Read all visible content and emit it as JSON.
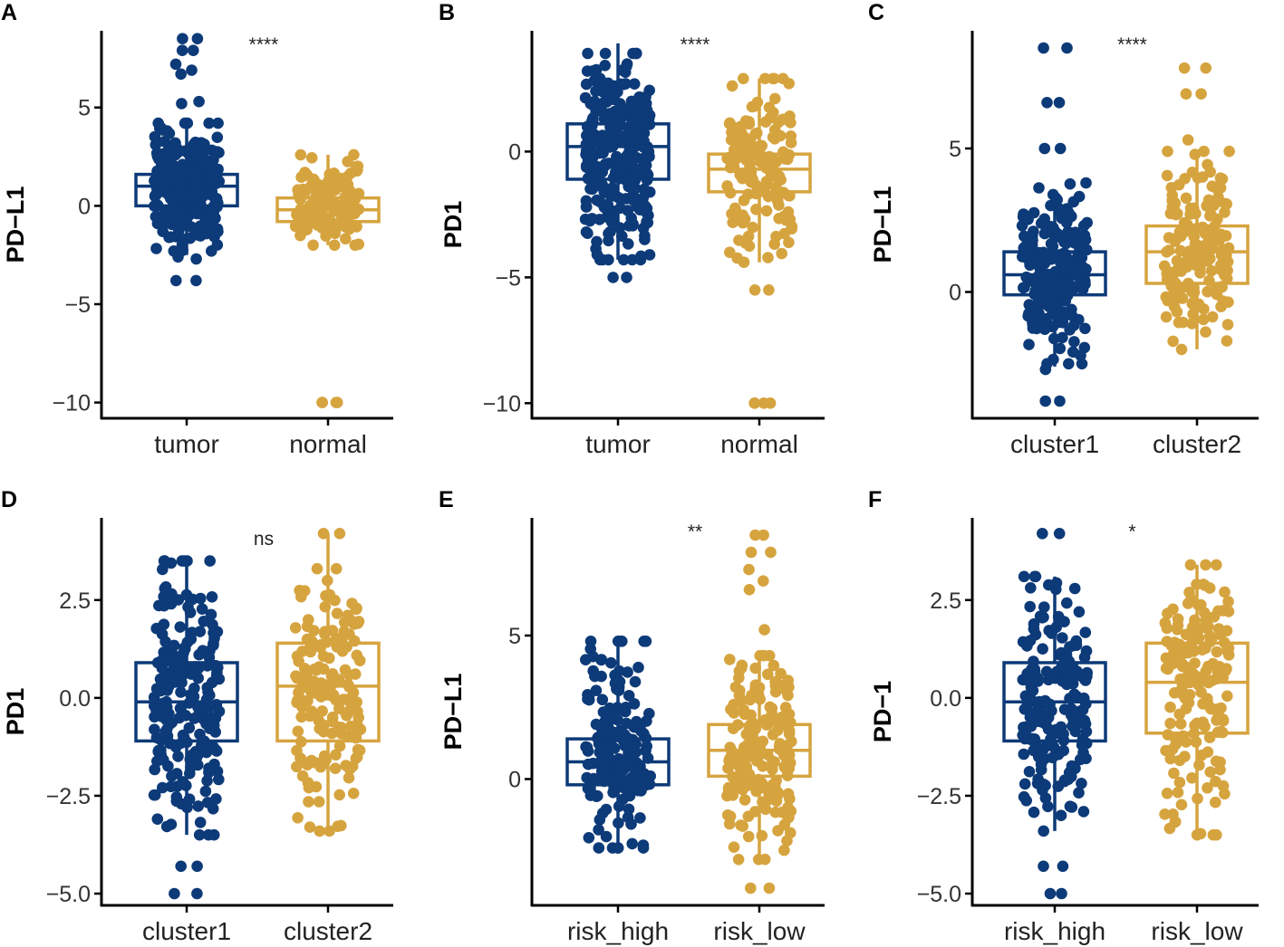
{
  "colors": {
    "group1": "#0d3a78",
    "group2": "#d6a43f",
    "axis": "#000000"
  },
  "chart_data": [
    {
      "type": "box",
      "panel": "A",
      "ylabel": "PD−L1",
      "ticks": [
        5,
        0,
        -5,
        -10
      ],
      "tick_labels": [
        "5",
        "0",
        "−5",
        "−10"
      ],
      "ylim": [
        -10.8,
        8.9
      ],
      "significance": "****",
      "groups": [
        {
          "name": "tumor",
          "color": "group1",
          "box": {
            "q1": 0.0,
            "median": 1.0,
            "q3": 1.6,
            "whisker_low": -2.5,
            "whisker_high": 4.3
          },
          "outliers": [
            8.5,
            8.5,
            7.9,
            7.9,
            7.2,
            6.9,
            6.7,
            5.3,
            5.2,
            -3.8,
            -3.8,
            -2.7,
            -2.6
          ],
          "cloud": [
            -2.3,
            4.2
          ],
          "n": 280
        },
        {
          "name": "normal",
          "color": "group2",
          "box": {
            "q1": -0.8,
            "median": -0.2,
            "q3": 0.4,
            "whisker_low": -2.0,
            "whisker_high": 2.6
          },
          "outliers": [
            -10,
            -10,
            -10,
            -10
          ],
          "cloud": [
            -2.0,
            2.6
          ],
          "n": 120
        }
      ]
    },
    {
      "type": "box",
      "panel": "B",
      "ylabel": "PD1",
      "ticks": [
        0,
        -5,
        -10
      ],
      "tick_labels": [
        "0",
        "−5",
        "−10"
      ],
      "ylim": [
        -10.6,
        4.8
      ],
      "significance": "****",
      "groups": [
        {
          "name": "tumor",
          "color": "group1",
          "box": {
            "q1": -1.1,
            "median": 0.2,
            "q3": 1.1,
            "whisker_low": -4.3,
            "whisker_high": 4.3
          },
          "outliers": [
            -5.0,
            -5.0
          ],
          "cloud": [
            -4.3,
            3.9
          ],
          "n": 280
        },
        {
          "name": "normal",
          "color": "group2",
          "box": {
            "q1": -1.6,
            "median": -0.7,
            "q3": -0.1,
            "whisker_low": -4.4,
            "whisker_high": 2.9
          },
          "outliers": [
            -10,
            -10,
            -10,
            -10,
            -5.5,
            -5.5
          ],
          "cloud": [
            -4.4,
            2.9
          ],
          "n": 150
        }
      ]
    },
    {
      "type": "box",
      "panel": "C",
      "ylabel": "PD−L1",
      "ticks": [
        5,
        0
      ],
      "tick_labels": [
        "5",
        "0"
      ],
      "ylim": [
        -4.4,
        9.1
      ],
      "significance": "****",
      "groups": [
        {
          "name": "cluster1",
          "color": "group1",
          "box": {
            "q1": -0.1,
            "median": 0.6,
            "q3": 1.4,
            "whisker_low": -2.6,
            "whisker_high": 3.4
          },
          "outliers": [
            8.5,
            8.5,
            6.6,
            6.6,
            5.0,
            5.0,
            -3.8,
            -3.8,
            -2.7
          ],
          "cloud": [
            -2.5,
            3.8
          ],
          "n": 220
        },
        {
          "name": "cluster2",
          "color": "group2",
          "box": {
            "q1": 0.3,
            "median": 1.4,
            "q3": 2.3,
            "whisker_low": -2.0,
            "whisker_high": 4.9
          },
          "outliers": [
            7.8,
            7.8,
            6.9,
            6.9,
            5.3
          ],
          "cloud": [
            -2.0,
            4.9
          ],
          "n": 170
        }
      ]
    },
    {
      "type": "box",
      "panel": "D",
      "ylabel": "PD1",
      "ticks": [
        2.5,
        0.0,
        -2.5,
        -5.0
      ],
      "tick_labels": [
        "2.5",
        "0.0",
        "−2.5",
        "−5.0"
      ],
      "ylim": [
        -5.3,
        4.6
      ],
      "significance": "ns",
      "groups": [
        {
          "name": "cluster1",
          "color": "group1",
          "box": {
            "q1": -1.1,
            "median": -0.1,
            "q3": 0.9,
            "whisker_low": -3.5,
            "whisker_high": 3.5
          },
          "outliers": [
            -5.0,
            -5.0,
            -4.3,
            -4.3
          ],
          "cloud": [
            -3.5,
            3.5
          ],
          "n": 220
        },
        {
          "name": "cluster2",
          "color": "group2",
          "box": {
            "q1": -1.1,
            "median": 0.3,
            "q3": 1.4,
            "whisker_low": -3.4,
            "whisker_high": 4.2
          },
          "outliers": [
            4.2,
            4.2,
            3.3,
            3.3
          ],
          "cloud": [
            -3.4,
            3.0
          ],
          "n": 170
        }
      ]
    },
    {
      "type": "box",
      "panel": "E",
      "ylabel": "PD−L1",
      "ticks": [
        5,
        0
      ],
      "tick_labels": [
        "5",
        "0"
      ],
      "ylim": [
        -4.4,
        9.1
      ],
      "significance": "**",
      "groups": [
        {
          "name": "risk_high",
          "color": "group1",
          "box": {
            "q1": -0.2,
            "median": 0.6,
            "q3": 1.4,
            "whisker_low": -2.4,
            "whisker_high": 4.8
          },
          "outliers": [],
          "cloud": [
            -2.4,
            4.8
          ],
          "n": 190
        },
        {
          "name": "risk_low",
          "color": "group2",
          "box": {
            "q1": 0.1,
            "median": 1.0,
            "q3": 1.9,
            "whisker_low": -2.8,
            "whisker_high": 4.3
          },
          "outliers": [
            8.5,
            8.5,
            7.9,
            7.9,
            7.3,
            6.9,
            6.6,
            5.2,
            -3.8,
            -3.8
          ],
          "cloud": [
            -2.8,
            4.3
          ],
          "n": 180
        }
      ]
    },
    {
      "type": "box",
      "panel": "F",
      "ylabel": "PD−1",
      "ticks": [
        2.5,
        0.0,
        -2.5,
        -5.0
      ],
      "tick_labels": [
        "2.5",
        "0.0",
        "−2.5",
        "−5.0"
      ],
      "ylim": [
        -5.3,
        4.6
      ],
      "significance": "*",
      "groups": [
        {
          "name": "risk_high",
          "color": "group1",
          "box": {
            "q1": -1.1,
            "median": -0.1,
            "q3": 0.9,
            "whisker_low": -3.4,
            "whisker_high": 3.1
          },
          "outliers": [
            4.2,
            4.2,
            -4.3,
            -4.3,
            -5.0,
            -5.0
          ],
          "cloud": [
            -3.4,
            3.1
          ],
          "n": 190
        },
        {
          "name": "risk_low",
          "color": "group2",
          "box": {
            "q1": -0.9,
            "median": 0.4,
            "q3": 1.4,
            "whisker_low": -3.5,
            "whisker_high": 3.4
          },
          "outliers": [],
          "cloud": [
            -3.5,
            3.4
          ],
          "n": 180
        }
      ]
    }
  ]
}
